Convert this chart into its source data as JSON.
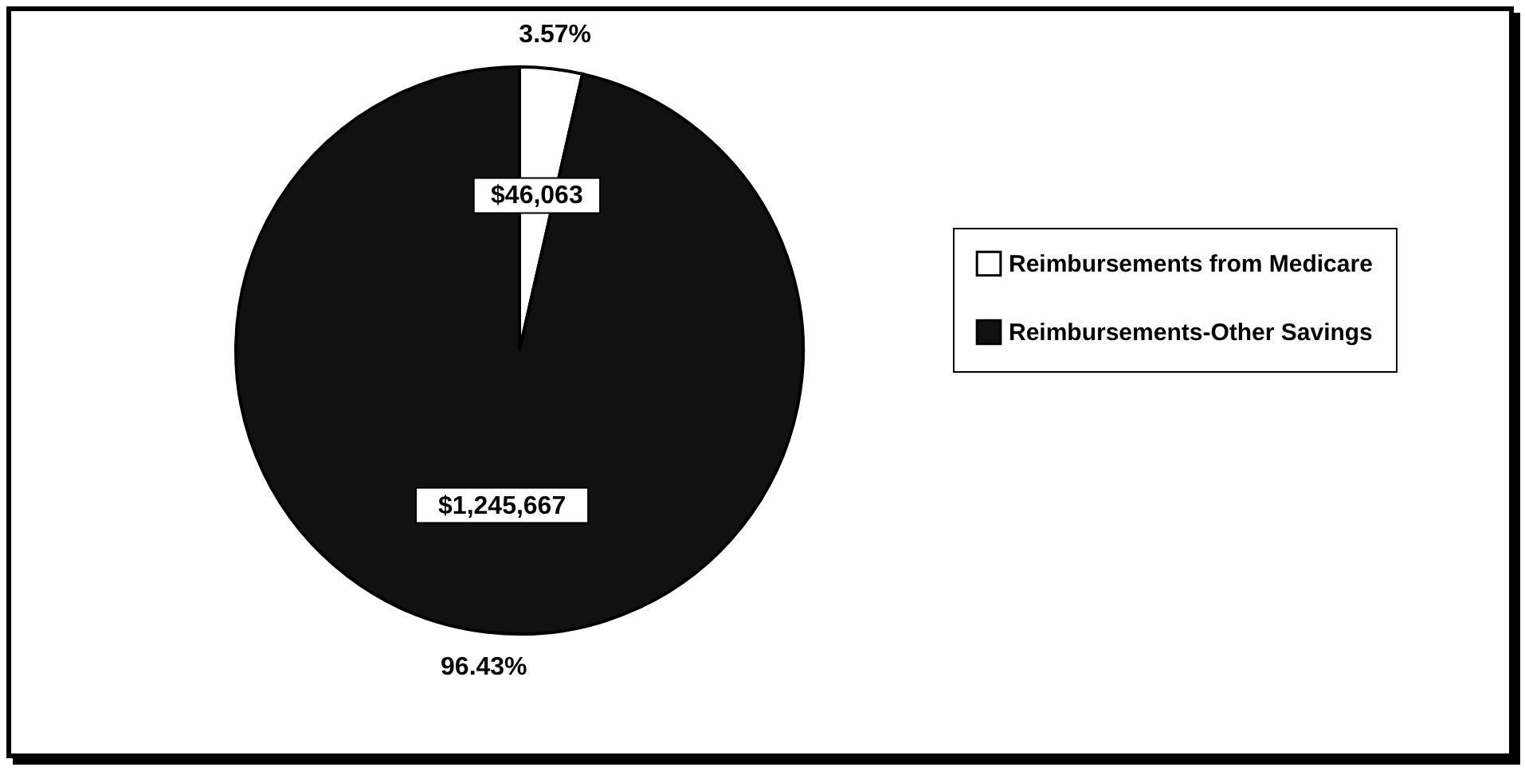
{
  "chart_data": {
    "type": "pie",
    "categories": [
      "Reimbursements from Medicare",
      "Reimbursements-Other Savings"
    ],
    "values": [
      46063,
      1245667
    ],
    "colors": [
      "#ffffff",
      "#111111"
    ],
    "value_labels": [
      "$46,063",
      "$1,245,667"
    ],
    "annotations": [
      "3.57%",
      "96.43%"
    ],
    "legend": "right"
  }
}
